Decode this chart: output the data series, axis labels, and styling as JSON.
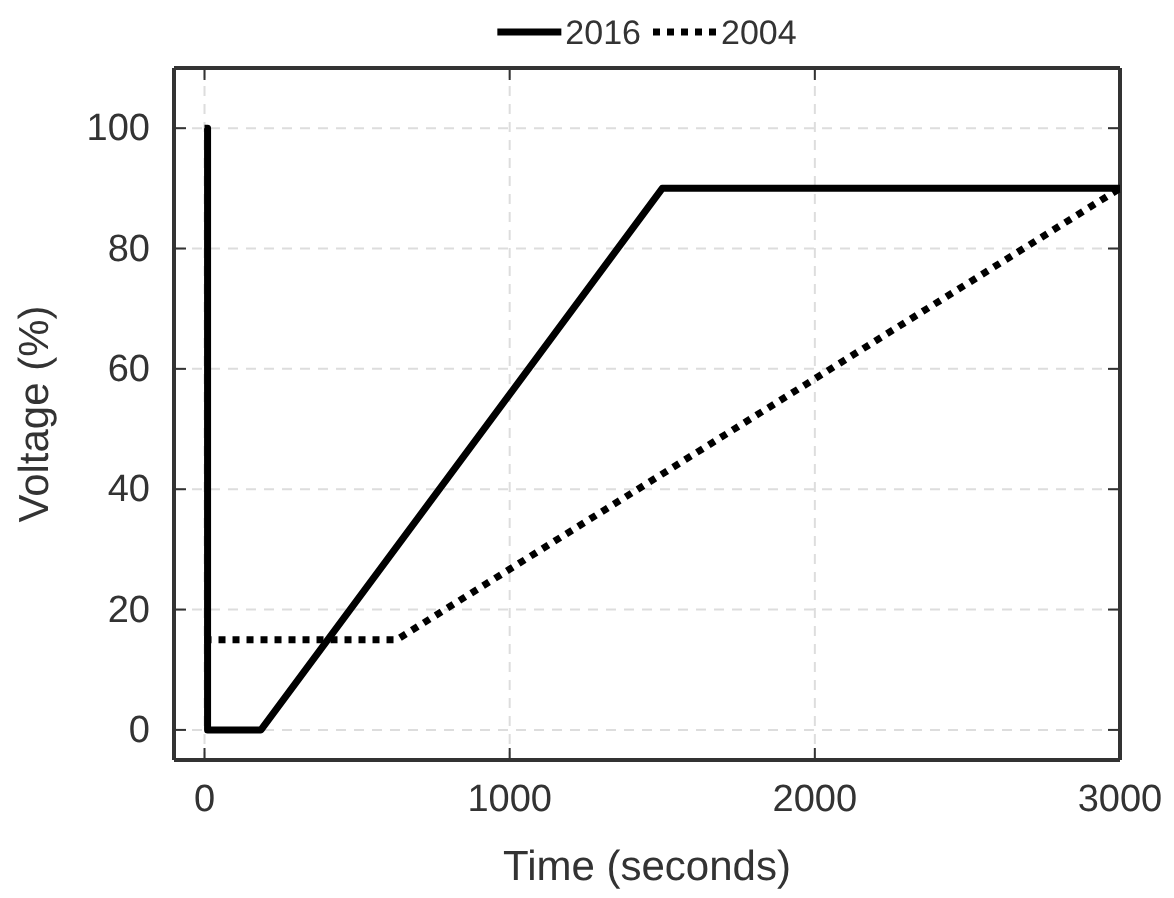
{
  "chart_data": {
    "type": "line",
    "xlabel": "Time (seconds)",
    "ylabel": "Voltage (%)",
    "xlim": [
      -100,
      3000
    ],
    "xticks": [
      0,
      1000,
      2000,
      3000
    ],
    "ylim": [
      -5,
      110
    ],
    "yticks": [
      0,
      20,
      40,
      60,
      80,
      100
    ],
    "grid": true,
    "legend": "top",
    "series": [
      {
        "name": "2016",
        "color": "#000000",
        "line_style": "solid",
        "x": [
          0,
          10,
          10,
          185,
          1500,
          3000
        ],
        "values": [
          100,
          100,
          0,
          0,
          90,
          90
        ]
      },
      {
        "name": "2004",
        "color": "#000000",
        "line_style": "dotted",
        "x": [
          0,
          630,
          3000
        ],
        "values": [
          15,
          15,
          90
        ]
      }
    ]
  }
}
